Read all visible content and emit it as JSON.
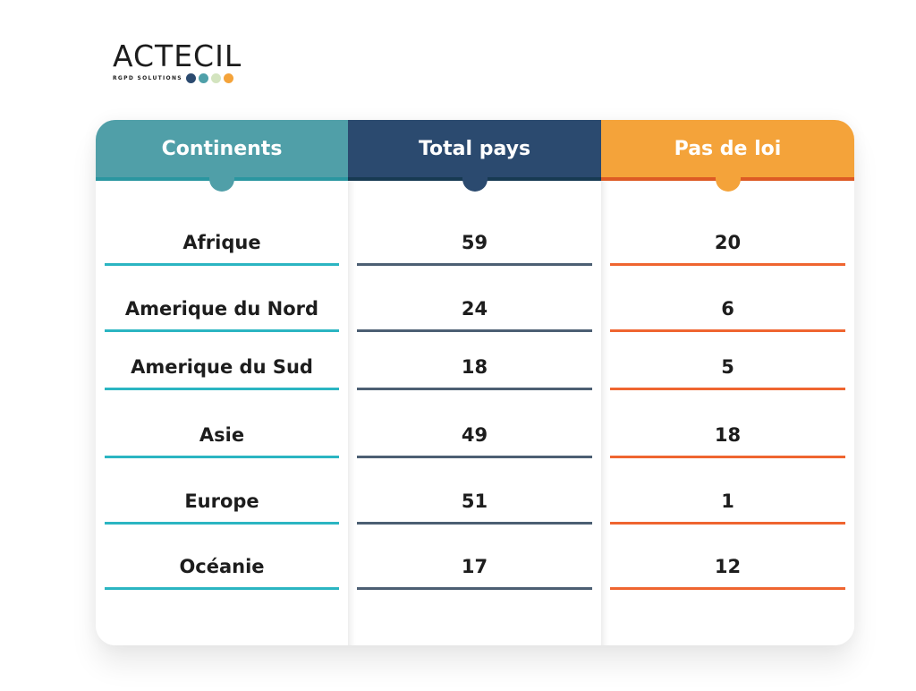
{
  "logo": {
    "name": "ACTECIL",
    "tagline": "RGPD SOLUTIONS",
    "dots": [
      "#2b4a6f",
      "#4fa0a9",
      "#d3e4bf",
      "#f4a33a"
    ]
  },
  "table": {
    "columns": [
      {
        "label": "Continents",
        "header_color": "#509fa8",
        "strip_color": "#2a96a0",
        "line_color": "#2bb5c2"
      },
      {
        "label": "Total pays",
        "header_color": "#2b4a6f",
        "strip_color": "#173a52",
        "line_color": "#4c5f73"
      },
      {
        "label": "Pas de loi",
        "header_color": "#f4a33a",
        "strip_color": "#dd5a24",
        "line_color": "#ef6530"
      }
    ],
    "rows": [
      {
        "continent": "Afrique",
        "total": "59",
        "no_law": "20"
      },
      {
        "continent": "Amerique du Nord",
        "total": "24",
        "no_law": "6"
      },
      {
        "continent": "Amerique du Sud",
        "total": "18",
        "no_law": "5"
      },
      {
        "continent": "Asie",
        "total": "49",
        "no_law": "18"
      },
      {
        "continent": "Europe",
        "total": "51",
        "no_law": "1"
      },
      {
        "continent": "Océanie",
        "total": "17",
        "no_law": "12"
      }
    ]
  },
  "chart_data": {
    "type": "table",
    "title": "",
    "columns": [
      "Continents",
      "Total pays",
      "Pas de loi"
    ],
    "categories": [
      "Afrique",
      "Amerique du Nord",
      "Amerique du Sud",
      "Asie",
      "Europe",
      "Océanie"
    ],
    "series": [
      {
        "name": "Total pays",
        "values": [
          59,
          24,
          18,
          49,
          51,
          17
        ]
      },
      {
        "name": "Pas de loi",
        "values": [
          20,
          6,
          5,
          18,
          1,
          12
        ]
      }
    ]
  }
}
